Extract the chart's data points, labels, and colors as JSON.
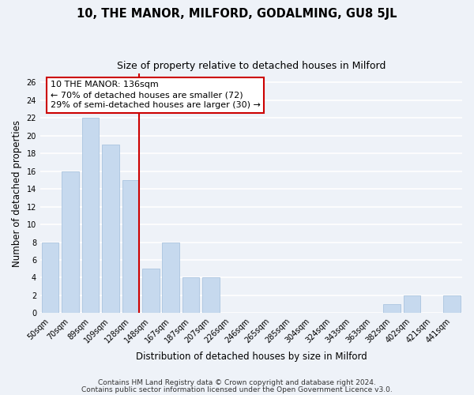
{
  "title": "10, THE MANOR, MILFORD, GODALMING, GU8 5JL",
  "subtitle": "Size of property relative to detached houses in Milford",
  "xlabel": "Distribution of detached houses by size in Milford",
  "ylabel": "Number of detached properties",
  "bar_labels": [
    "50sqm",
    "70sqm",
    "89sqm",
    "109sqm",
    "128sqm",
    "148sqm",
    "167sqm",
    "187sqm",
    "207sqm",
    "226sqm",
    "246sqm",
    "265sqm",
    "285sqm",
    "304sqm",
    "324sqm",
    "343sqm",
    "363sqm",
    "382sqm",
    "402sqm",
    "421sqm",
    "441sqm"
  ],
  "bar_values": [
    8,
    16,
    22,
    19,
    15,
    5,
    8,
    4,
    4,
    0,
    0,
    0,
    0,
    0,
    0,
    0,
    0,
    1,
    2,
    0,
    2
  ],
  "bar_color": "#c6d9ee",
  "bar_edge_color": "#aac4df",
  "vline_color": "#cc0000",
  "annotation_title": "10 THE MANOR: 136sqm",
  "annotation_line1": "← 70% of detached houses are smaller (72)",
  "annotation_line2": "29% of semi-detached houses are larger (30) →",
  "annotation_box_color": "#ffffff",
  "annotation_box_edge": "#cc0000",
  "ylim": [
    0,
    27
  ],
  "yticks": [
    0,
    2,
    4,
    6,
    8,
    10,
    12,
    14,
    16,
    18,
    20,
    22,
    24,
    26
  ],
  "footer1": "Contains HM Land Registry data © Crown copyright and database right 2024.",
  "footer2": "Contains public sector information licensed under the Open Government Licence v3.0.",
  "bg_color": "#eef2f8",
  "plot_bg_color": "#eef2f8",
  "grid_color": "#ffffff",
  "title_fontsize": 10.5,
  "subtitle_fontsize": 9,
  "axis_label_fontsize": 8.5,
  "tick_fontsize": 7,
  "annotation_fontsize": 8,
  "footer_fontsize": 6.5
}
